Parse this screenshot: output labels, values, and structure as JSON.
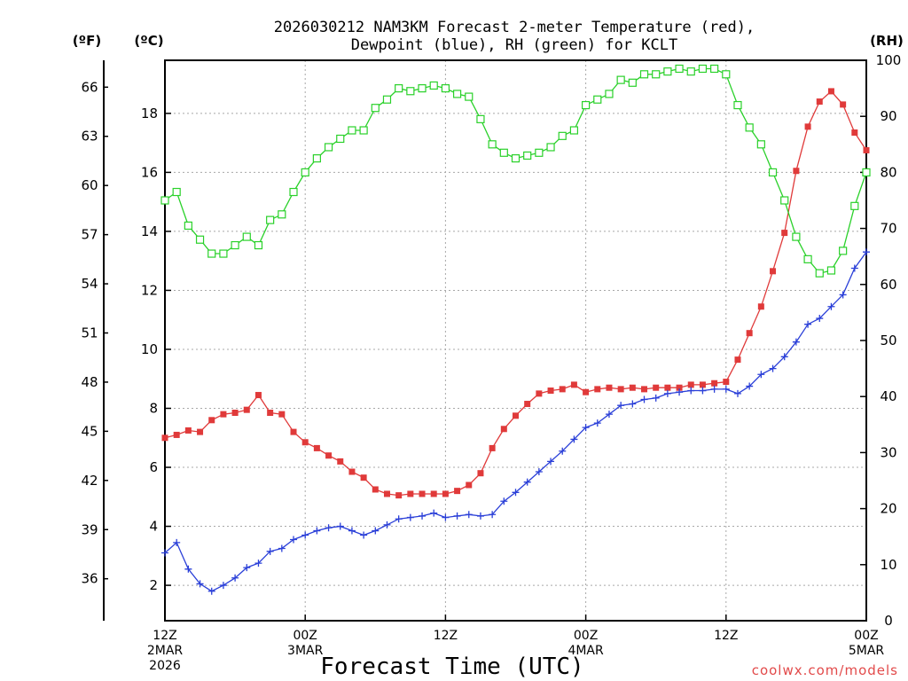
{
  "chart_data": {
    "type": "line",
    "title_lines": [
      "2026030212 NAM3KM Forecast 2-meter Temperature (red),",
      "Dewpoint (blue), RH (green) for KCLT"
    ],
    "xlabel": "Forecast Time (UTC)",
    "credit": "coolwx.com/models",
    "left_axis_f": {
      "header": "(ºF)",
      "ticks": [
        36,
        39,
        42,
        45,
        48,
        51,
        54,
        57,
        60,
        63,
        66
      ]
    },
    "left_axis_c": {
      "header": "(ºC)",
      "ticks": [
        2,
        4,
        6,
        8,
        10,
        12,
        14,
        16,
        18
      ],
      "ylim": [
        0.8,
        19.8
      ]
    },
    "right_axis_rh": {
      "header": "(RH)",
      "ticks": [
        0,
        10,
        20,
        30,
        40,
        50,
        60,
        70,
        80,
        90,
        100
      ],
      "ylim": [
        0,
        100
      ]
    },
    "x_ticks": [
      {
        "hour": 0,
        "lines": [
          "12Z",
          "2MAR",
          "2026"
        ]
      },
      {
        "hour": 12,
        "lines": [
          "00Z",
          "3MAR"
        ]
      },
      {
        "hour": 24,
        "lines": [
          "12Z"
        ]
      },
      {
        "hour": 36,
        "lines": [
          "00Z",
          "4MAR"
        ]
      },
      {
        "hour": 48,
        "lines": [
          "12Z"
        ]
      },
      {
        "hour": 60,
        "lines": [
          "00Z",
          "5MAR"
        ]
      }
    ],
    "x_range_hours": [
      0,
      60
    ],
    "series": [
      {
        "name": "Temperature (C)",
        "axis": "C",
        "color": "#e03a3a",
        "marker": "filled-square",
        "values": [
          7.0,
          7.1,
          7.25,
          7.2,
          7.6,
          7.8,
          7.85,
          7.95,
          8.45,
          7.85,
          7.8,
          7.2,
          6.85,
          6.65,
          6.4,
          6.2,
          5.85,
          5.65,
          5.25,
          5.1,
          5.05,
          5.1,
          5.1,
          5.1,
          5.1,
          5.2,
          5.4,
          5.8,
          6.65,
          7.3,
          7.75,
          8.15,
          8.5,
          8.6,
          8.65,
          8.8,
          8.55,
          8.65,
          8.7,
          8.65,
          8.7,
          8.65,
          8.7,
          8.7,
          8.7,
          8.8,
          8.8,
          8.85,
          8.9,
          9.65,
          10.55,
          11.45,
          12.65,
          13.95,
          16.05,
          17.55,
          18.4,
          18.75,
          18.3,
          17.35,
          16.75
        ]
      },
      {
        "name": "Dewpoint (C)",
        "axis": "C",
        "color": "#2a3fd8",
        "marker": "plus",
        "values": [
          3.1,
          3.45,
          2.55,
          2.05,
          1.8,
          2.0,
          2.25,
          2.6,
          2.75,
          3.15,
          3.25,
          3.55,
          3.7,
          3.85,
          3.95,
          4.0,
          3.85,
          3.7,
          3.85,
          4.05,
          4.25,
          4.3,
          4.35,
          4.45,
          4.3,
          4.35,
          4.4,
          4.35,
          4.4,
          4.85,
          5.15,
          5.5,
          5.85,
          6.2,
          6.55,
          6.95,
          7.35,
          7.5,
          7.8,
          8.1,
          8.15,
          8.3,
          8.35,
          8.5,
          8.55,
          8.6,
          8.6,
          8.65,
          8.65,
          8.5,
          8.75,
          9.15,
          9.35,
          9.75,
          10.25,
          10.85,
          11.05,
          11.45,
          11.85,
          12.75,
          13.3
        ]
      },
      {
        "name": "Relative Humidity (%)",
        "axis": "RH",
        "color": "#2ad12a",
        "marker": "open-square",
        "values": [
          75,
          76.5,
          70.5,
          68,
          65.5,
          65.5,
          67,
          68.5,
          67,
          71.5,
          72.5,
          76.5,
          80,
          82.5,
          84.5,
          86,
          87.5,
          87.5,
          91.5,
          93,
          95,
          94.5,
          95,
          95.5,
          95,
          94,
          93.5,
          89.5,
          85,
          83.5,
          82.5,
          83,
          83.5,
          84.5,
          86.5,
          87.5,
          92,
          93,
          94,
          96.5,
          96,
          97.5,
          97.5,
          98,
          98.5,
          98,
          98.5,
          98.5,
          97.5,
          92,
          88,
          85,
          80,
          75,
          68.5,
          64.5,
          62,
          62.5,
          66,
          74,
          80
        ]
      }
    ]
  }
}
